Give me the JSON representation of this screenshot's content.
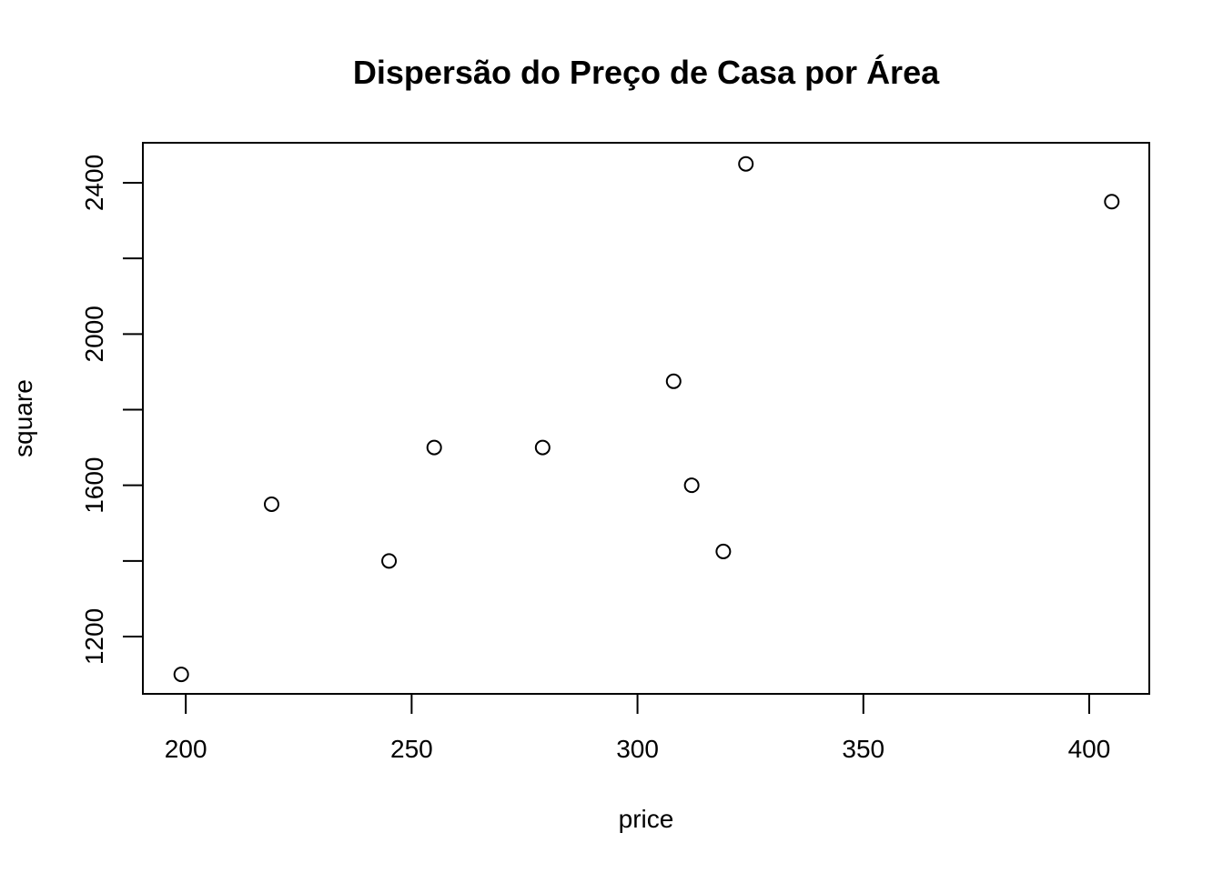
{
  "chart_data": {
    "type": "scatter",
    "title": "Dispersão do Preço de Casa por Área",
    "xlabel": "price",
    "ylabel": "square",
    "xlim": [
      190.5,
      413.3
    ],
    "ylim": [
      1048.5,
      2505.8
    ],
    "x_ticks": [
      200,
      250,
      300,
      350,
      400
    ],
    "y_ticks": [
      1200,
      1400,
      1600,
      1800,
      2000,
      2200,
      2400
    ],
    "y_tick_labels": [
      "1200",
      "1600",
      "2000",
      "2400"
    ],
    "grid": false,
    "marker": "open-circle",
    "color": "#000000",
    "points": [
      {
        "x": 245,
        "y": 1400
      },
      {
        "x": 312,
        "y": 1600
      },
      {
        "x": 279,
        "y": 1700
      },
      {
        "x": 308,
        "y": 1875
      },
      {
        "x": 199,
        "y": 1100
      },
      {
        "x": 219,
        "y": 1550
      },
      {
        "x": 405,
        "y": 2350
      },
      {
        "x": 324,
        "y": 2450
      },
      {
        "x": 319,
        "y": 1425
      },
      {
        "x": 255,
        "y": 1700
      }
    ]
  }
}
